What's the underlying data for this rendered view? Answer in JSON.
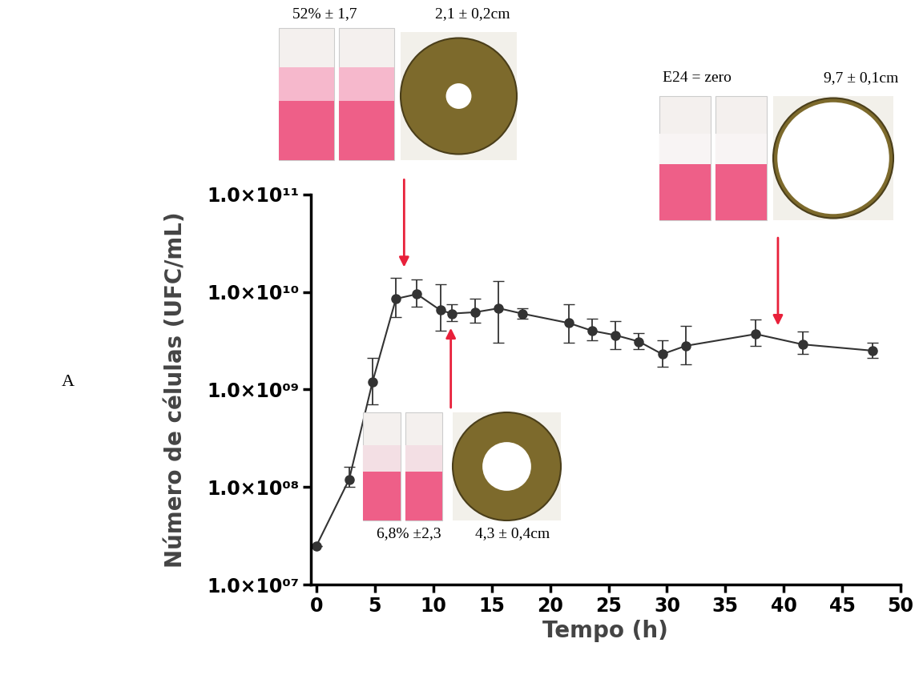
{
  "chart_data": {
    "type": "line",
    "panel_label": "A",
    "x_label": "Tempo (h)",
    "y_label": "Número de células (UFC/mL)",
    "log": "y",
    "grid": false,
    "xlim": [
      -0.5,
      50
    ],
    "xticks": [
      0,
      5,
      10,
      15,
      20,
      25,
      30,
      35,
      40,
      45,
      50
    ],
    "ylim": [
      10000000,
      100000000000
    ],
    "yticks": [
      {
        "value": 10000000,
        "label": "1.0×10⁰⁷"
      },
      {
        "value": 100000000,
        "label": "1.0×10⁰⁸"
      },
      {
        "value": 1000000000,
        "label": "1.0×10⁰⁹"
      },
      {
        "value": 10000000000,
        "label": "1.0×10¹⁰"
      },
      {
        "value": 100000000000,
        "label": "1.0×10¹¹"
      }
    ],
    "x": [
      0,
      2.8,
      4.8,
      6.8,
      8.6,
      10.6,
      11.6,
      13.6,
      15.6,
      17.6,
      21.6,
      23.6,
      25.6,
      27.6,
      29.6,
      31.6,
      37.6,
      41.6,
      47.6
    ],
    "series": [
      {
        "name": "Número de células",
        "color": "#333333",
        "marker": "o",
        "line_style": "solid",
        "values": [
          25000000,
          120000000,
          1200000000,
          8500000000,
          9500000000,
          6500000000,
          6000000000,
          6200000000,
          6800000000,
          6000000000,
          4800000000,
          4000000000,
          3600000000,
          3100000000,
          2300000000,
          2800000000,
          3700000000,
          2900000000,
          2500000000
        ],
        "error_low": [
          0,
          20000000,
          500000000,
          3000000000,
          2500000000,
          2500000000,
          1000000000,
          1400000000,
          3800000000,
          700000000,
          1800000000,
          800000000,
          1000000000,
          500000000,
          600000000,
          1000000000,
          900000000,
          600000000,
          400000000
        ],
        "error_high": [
          0,
          40000000,
          900000000,
          5500000000,
          4000000000,
          5500000000,
          1500000000,
          2300000000,
          6200000000,
          800000000,
          2700000000,
          1300000000,
          1400000000,
          700000000,
          900000000,
          1700000000,
          1500000000,
          1000000000,
          500000000
        ]
      }
    ],
    "annotations": [
      {
        "texts": [
          "52% ± 1,7",
          "2,1 ± 0,2cm"
        ],
        "x": 7.5,
        "y": 17000000000
      },
      {
        "texts": [
          "6,8% ±2,3",
          "4,3 ± 0,4cm"
        ],
        "x": 11.5,
        "y": 4500000000
      },
      {
        "texts": [
          "E24 = zero",
          "9,7 ± 0,1cm"
        ],
        "x": 39.5,
        "y": 4300000000
      }
    ]
  }
}
